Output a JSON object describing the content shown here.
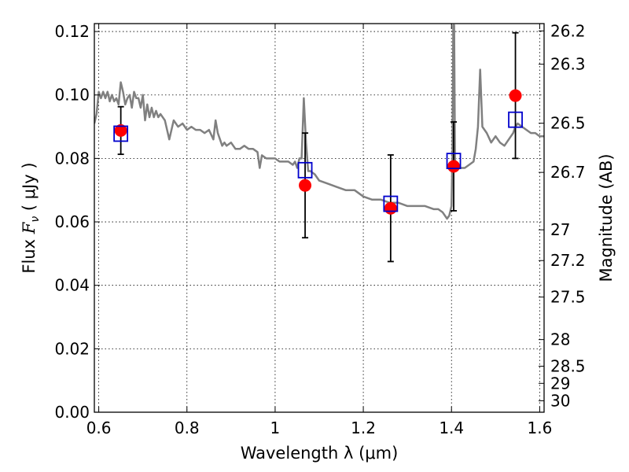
{
  "chart_data": {
    "type": "scatter",
    "xlabel": "Wavelength  λ (μm)",
    "ylabel_prefix": "Flux  ",
    "ylabel_var": "F",
    "ylabel_sub": "ν",
    "ylabel_unit": "  ( μJy )",
    "y2label": "Magnitude (AB)",
    "xlim": [
      0.59,
      1.61
    ],
    "ylim": [
      0.0,
      0.1225
    ],
    "grid": true,
    "x_ticks": [
      {
        "value": 0.6,
        "label": "0.6"
      },
      {
        "value": 0.8,
        "label": "0.8"
      },
      {
        "value": 1.0,
        "label": "1"
      },
      {
        "value": 1.2,
        "label": "1.2"
      },
      {
        "value": 1.4,
        "label": "1.4"
      },
      {
        "value": 1.6,
        "label": "1.6"
      }
    ],
    "y_ticks": [
      {
        "value": 0.0,
        "label": "0.00"
      },
      {
        "value": 0.02,
        "label": "0.02"
      },
      {
        "value": 0.04,
        "label": "0.04"
      },
      {
        "value": 0.06,
        "label": "0.06"
      },
      {
        "value": 0.08,
        "label": "0.08"
      },
      {
        "value": 0.1,
        "label": "0.10"
      },
      {
        "value": 0.12,
        "label": "0.12"
      }
    ],
    "y2_ticks": [
      {
        "flux": 0.1202,
        "label": "26.2"
      },
      {
        "flux": 0.1097,
        "label": "26.3"
      },
      {
        "flux": 0.0911,
        "label": "26.5"
      },
      {
        "flux": 0.0756,
        "label": "26.7"
      },
      {
        "flux": 0.0575,
        "label": "27"
      },
      {
        "flux": 0.0478,
        "label": "27.2"
      },
      {
        "flux": 0.0363,
        "label": "27.5"
      },
      {
        "flux": 0.0229,
        "label": "28"
      },
      {
        "flux": 0.0145,
        "label": "28.5"
      },
      {
        "flux": 0.0091,
        "label": "29"
      },
      {
        "flux": 0.0036,
        "label": "30"
      }
    ],
    "series": [
      {
        "kind": "model_spectrum",
        "color": "#808080",
        "x": [
          0.59,
          0.595,
          0.6,
          0.605,
          0.61,
          0.615,
          0.62,
          0.625,
          0.63,
          0.635,
          0.64,
          0.645,
          0.65,
          0.655,
          0.66,
          0.665,
          0.67,
          0.675,
          0.68,
          0.685,
          0.69,
          0.695,
          0.7,
          0.705,
          0.71,
          0.715,
          0.72,
          0.725,
          0.73,
          0.735,
          0.74,
          0.75,
          0.76,
          0.77,
          0.78,
          0.79,
          0.8,
          0.81,
          0.82,
          0.83,
          0.84,
          0.85,
          0.86,
          0.865,
          0.87,
          0.875,
          0.88,
          0.885,
          0.89,
          0.9,
          0.91,
          0.92,
          0.93,
          0.94,
          0.95,
          0.96,
          0.965,
          0.97,
          0.98,
          0.99,
          1.0,
          1.01,
          1.02,
          1.03,
          1.04,
          1.045,
          1.05,
          1.055,
          1.06,
          1.065,
          1.07,
          1.075,
          1.08,
          1.09,
          1.1,
          1.12,
          1.14,
          1.16,
          1.18,
          1.2,
          1.22,
          1.24,
          1.26,
          1.28,
          1.3,
          1.32,
          1.34,
          1.36,
          1.37,
          1.38,
          1.39,
          1.395,
          1.4,
          1.402,
          1.404,
          1.406,
          1.408,
          1.41,
          1.415,
          1.42,
          1.43,
          1.44,
          1.45,
          1.455,
          1.46,
          1.465,
          1.47,
          1.48,
          1.49,
          1.5,
          1.51,
          1.52,
          1.53,
          1.54,
          1.545,
          1.55,
          1.56,
          1.57,
          1.58,
          1.59,
          1.6,
          1.61
        ],
        "y": [
          0.091,
          0.094,
          0.101,
          0.099,
          0.101,
          0.099,
          0.101,
          0.098,
          0.1,
          0.098,
          0.099,
          0.097,
          0.104,
          0.101,
          0.097,
          0.099,
          0.1,
          0.096,
          0.101,
          0.099,
          0.099,
          0.096,
          0.1,
          0.092,
          0.097,
          0.093,
          0.096,
          0.093,
          0.095,
          0.093,
          0.094,
          0.092,
          0.086,
          0.092,
          0.09,
          0.091,
          0.089,
          0.09,
          0.089,
          0.089,
          0.088,
          0.089,
          0.086,
          0.092,
          0.088,
          0.086,
          0.084,
          0.085,
          0.084,
          0.085,
          0.083,
          0.083,
          0.084,
          0.083,
          0.083,
          0.082,
          0.077,
          0.081,
          0.08,
          0.08,
          0.08,
          0.079,
          0.079,
          0.079,
          0.078,
          0.079,
          0.077,
          0.08,
          0.08,
          0.099,
          0.085,
          0.076,
          0.076,
          0.075,
          0.073,
          0.072,
          0.071,
          0.07,
          0.07,
          0.068,
          0.067,
          0.067,
          0.066,
          0.066,
          0.065,
          0.065,
          0.065,
          0.064,
          0.064,
          0.063,
          0.061,
          0.062,
          0.065,
          0.08,
          0.122,
          0.122,
          0.08,
          0.077,
          0.078,
          0.077,
          0.077,
          0.078,
          0.079,
          0.083,
          0.09,
          0.108,
          0.09,
          0.088,
          0.085,
          0.087,
          0.085,
          0.084,
          0.086,
          0.088,
          0.09,
          0.091,
          0.09,
          0.089,
          0.088,
          0.088,
          0.087,
          0.087
        ]
      },
      {
        "kind": "observed",
        "marker": "circle",
        "color": "#ff0000",
        "x": [
          0.65,
          1.068,
          1.262,
          1.405,
          1.545
        ],
        "y": [
          0.0888,
          0.0715,
          0.0643,
          0.0775,
          0.0998
        ],
        "yerr": [
          0.0075,
          0.0165,
          0.0168,
          0.014,
          0.0198
        ]
      },
      {
        "kind": "model_photometry",
        "marker": "square",
        "color": "#0000cc",
        "x": [
          0.65,
          1.068,
          1.262,
          1.405,
          1.545
        ],
        "y": [
          0.0878,
          0.0763,
          0.0657,
          0.0792,
          0.0922
        ]
      }
    ]
  }
}
